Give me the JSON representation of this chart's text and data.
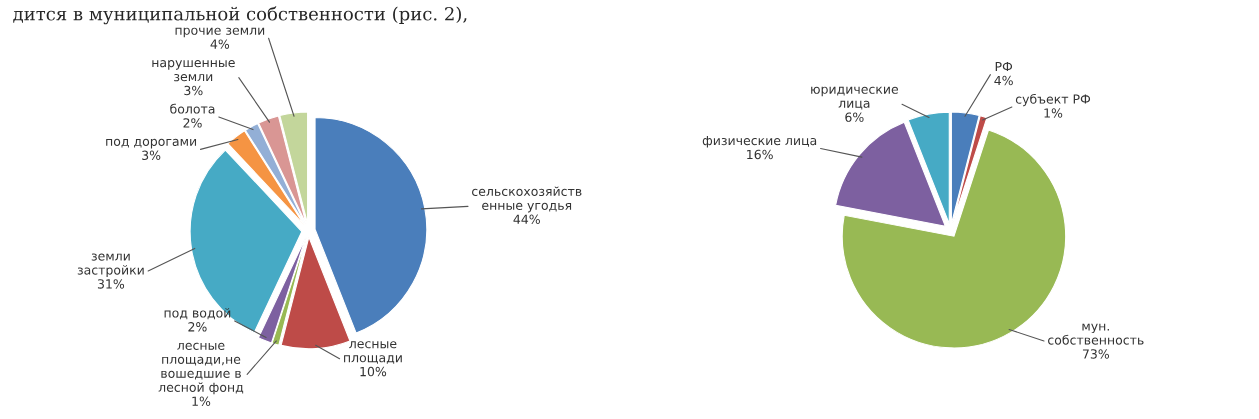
{
  "chart_data": [
    {
      "type": "pie",
      "annotations": [
        "дится в муниципальной собственности (рис. 2),"
      ],
      "categories": [
        "сельскохозяйств\nенные угодья",
        "лесные\nплощади",
        "лесные\nплощади,не\nвошедшие в\nлесной фонд",
        "под водой",
        "земли\nзастройки",
        "под дорогами",
        "болота",
        "нарушенные\nземли",
        "прочие земли"
      ],
      "values": [
        44,
        10,
        1,
        2,
        31,
        3,
        2,
        3,
        4
      ],
      "value_labels": [
        "44%",
        "10%",
        "1%",
        "2%",
        "31%",
        "3%",
        "2%",
        "3%",
        "4%"
      ],
      "colors": [
        "#4a7ebb",
        "#be4b48",
        "#98b954",
        "#7d60a0",
        "#46aac5",
        "#f59443",
        "#93afd6",
        "#d99694",
        "#c3d69b"
      ]
    },
    {
      "type": "pie",
      "categories": [
        "РФ",
        "субъект РФ",
        "мун.\nсобственность",
        "физические лица",
        "юридические\nлица"
      ],
      "values": [
        4,
        1,
        73,
        16,
        6
      ],
      "value_labels": [
        "4%",
        "1%",
        "73%",
        "16%",
        "6%"
      ],
      "colors": [
        "#4a7ebb",
        "#be4b48",
        "#98b954",
        "#7d60a0",
        "#46aac5"
      ]
    }
  ]
}
